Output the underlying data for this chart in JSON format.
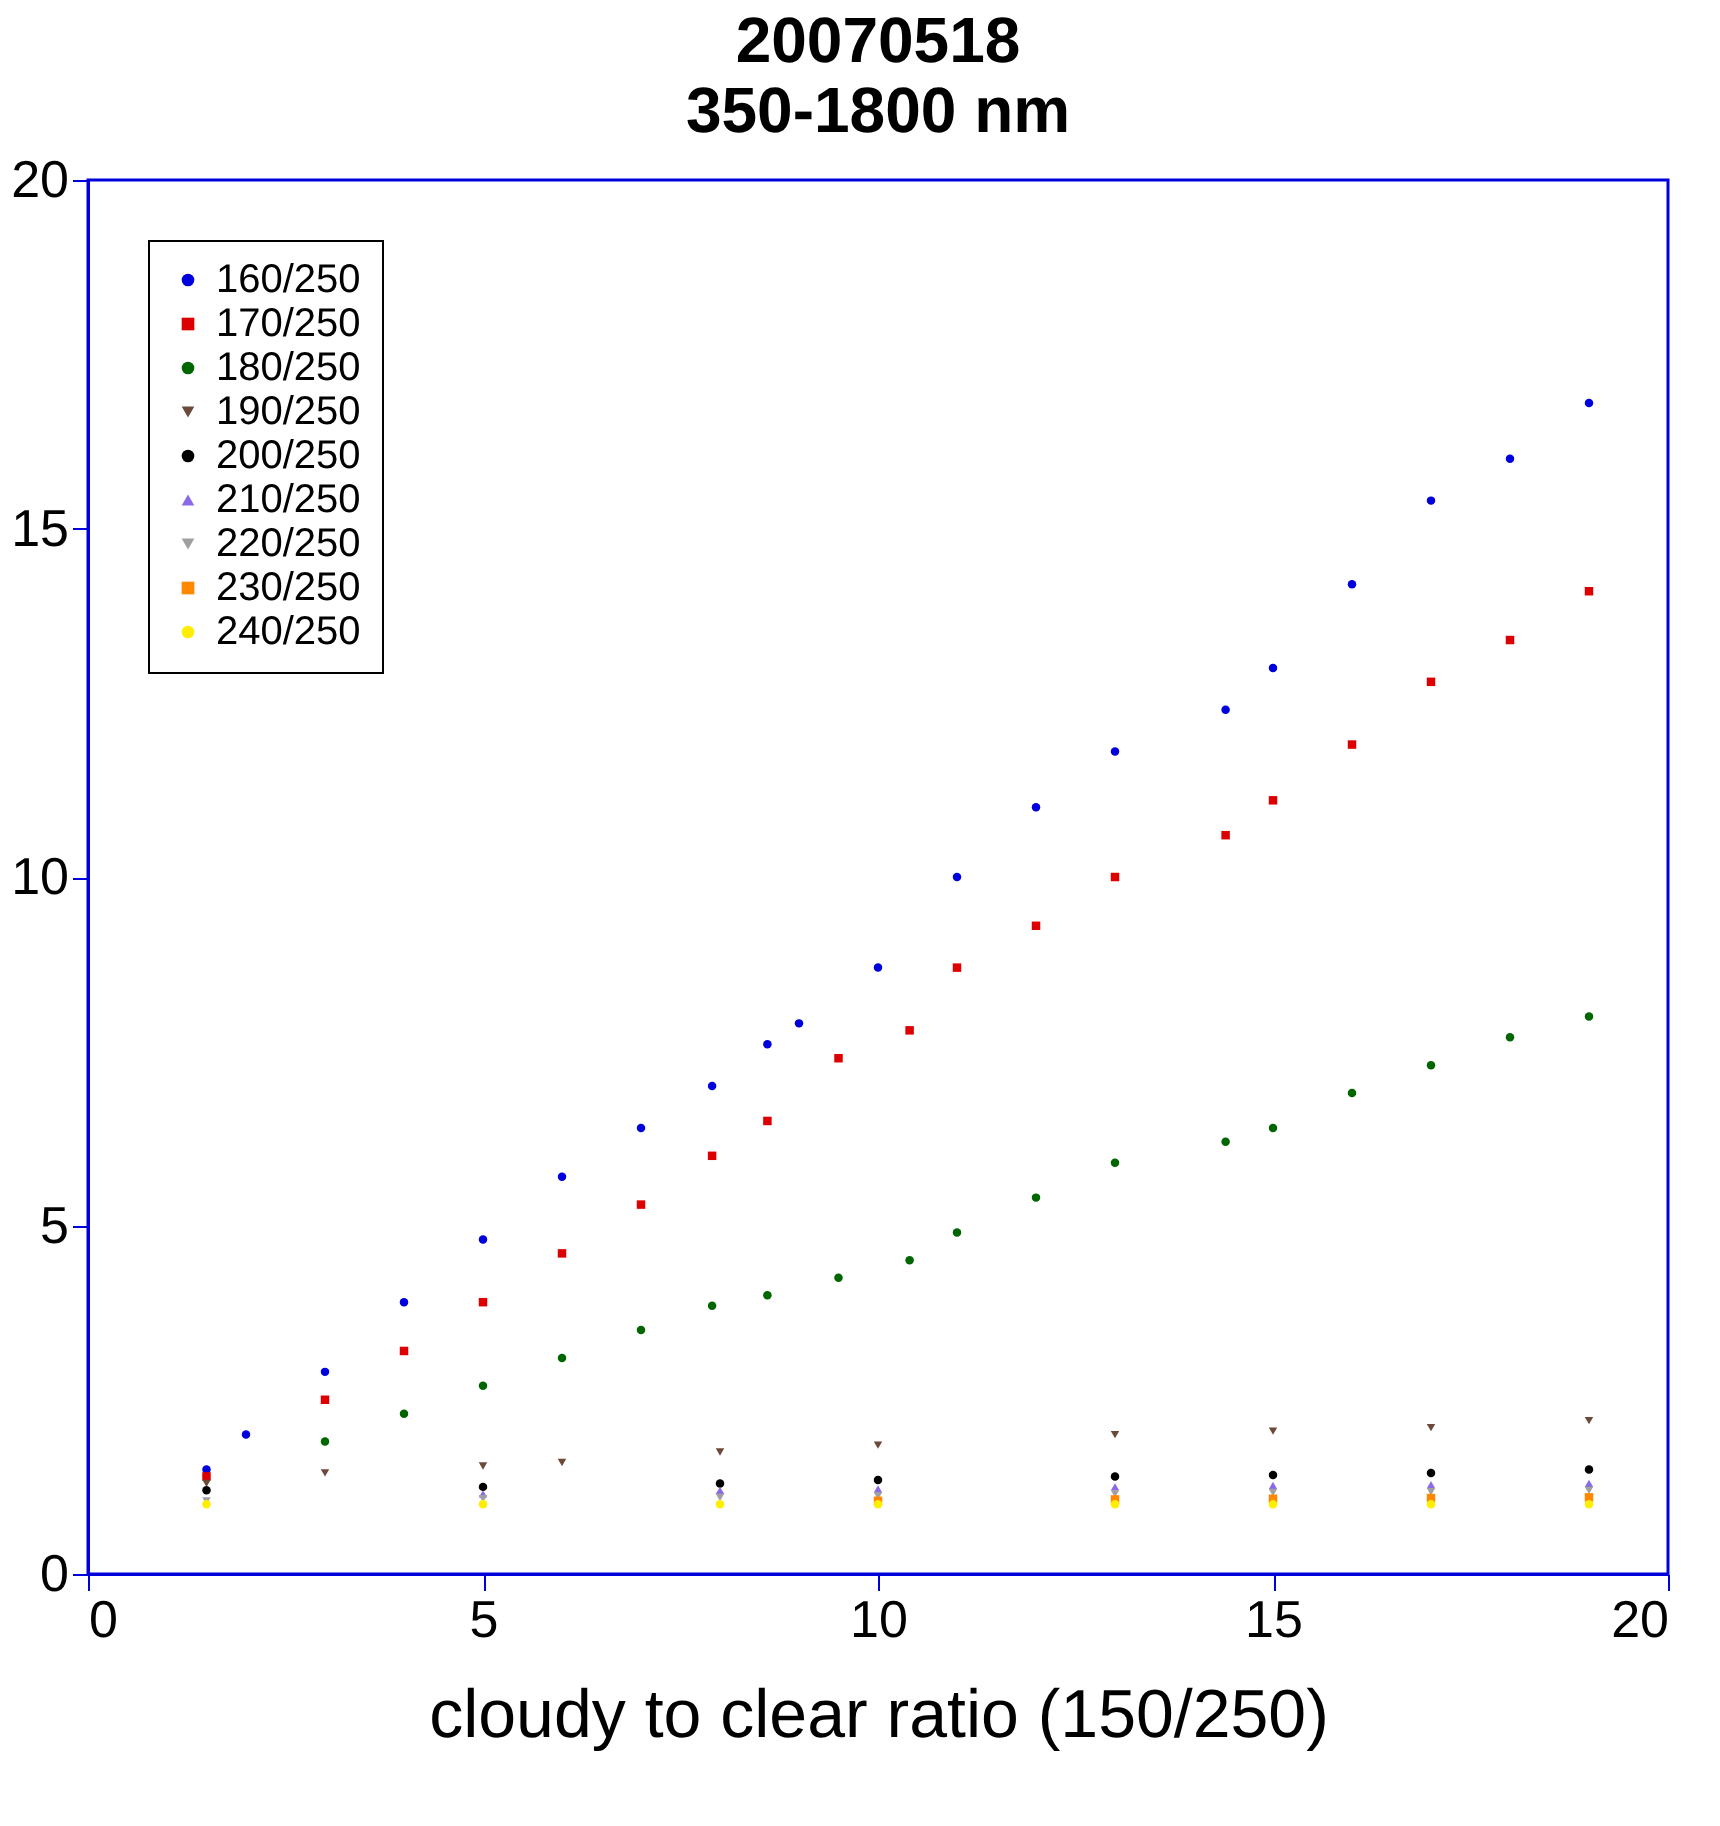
{
  "chart_data": {
    "type": "scatter",
    "title": "20070518",
    "subtitle": "350-1800 nm",
    "xlabel": "cloudy to clear ratio (150/250)",
    "xlim": [
      0,
      20
    ],
    "xticks": [
      0,
      5,
      10,
      15,
      20
    ],
    "ylim": [
      0,
      20
    ],
    "yticks": [
      0,
      5,
      10,
      15,
      20
    ],
    "grid": false,
    "legend": "top left",
    "series": [
      {
        "name": "160/250",
        "color": "#0000dd",
        "marker": "circle",
        "x": [
          1.5,
          2,
          3,
          4,
          5,
          6,
          7,
          7.9,
          8.6,
          9,
          10,
          11,
          12,
          13,
          14.4,
          15,
          16,
          17,
          18,
          19
        ],
        "values": [
          1.5,
          2,
          2.9,
          3.9,
          4.8,
          5.7,
          6.4,
          7.0,
          7.6,
          7.9,
          8.7,
          10.0,
          11.0,
          11.8,
          12.4,
          13.0,
          14.2,
          15.4,
          16.0,
          16.8
        ]
      },
      {
        "name": "170/250",
        "color": "#dd0000",
        "marker": "square",
        "x": [
          1.5,
          3,
          4,
          5,
          6,
          7,
          7.9,
          8.6,
          9.5,
          10.4,
          11,
          12,
          13,
          14.4,
          15,
          16,
          17,
          18,
          19
        ],
        "values": [
          1.4,
          2.5,
          3.2,
          3.9,
          4.6,
          5.3,
          6.0,
          6.5,
          7.4,
          7.8,
          8.7,
          9.3,
          10.0,
          10.6,
          11.1,
          11.9,
          12.8,
          13.4,
          14.1
        ]
      },
      {
        "name": "180/250",
        "color": "#006600",
        "marker": "circle",
        "x": [
          3,
          4,
          5,
          6,
          7,
          7.9,
          8.6,
          9.5,
          10.4,
          11,
          12,
          13,
          14.4,
          15,
          16,
          17,
          18,
          19
        ],
        "values": [
          1.9,
          2.3,
          2.7,
          3.1,
          3.5,
          3.85,
          4.0,
          4.25,
          4.5,
          4.9,
          5.4,
          5.9,
          6.2,
          6.4,
          6.9,
          7.3,
          7.7,
          8.0
        ]
      },
      {
        "name": "190/250",
        "color": "#6b4a3a",
        "marker": "triangle-down",
        "x": [
          1.5,
          3,
          5,
          6,
          8,
          10,
          13,
          15,
          17,
          19
        ],
        "values": [
          1.3,
          1.45,
          1.55,
          1.6,
          1.75,
          1.85,
          2.0,
          2.05,
          2.1,
          2.2
        ]
      },
      {
        "name": "200/250",
        "color": "#000000",
        "marker": "circle",
        "x": [
          1.5,
          5,
          8,
          10,
          13,
          15,
          17,
          19
        ],
        "values": [
          1.2,
          1.25,
          1.3,
          1.35,
          1.4,
          1.42,
          1.45,
          1.5
        ]
      },
      {
        "name": "210/250",
        "color": "#8a6ae6",
        "marker": "triangle-up",
        "x": [
          5,
          8,
          10,
          13,
          15,
          17,
          19
        ],
        "values": [
          1.15,
          1.2,
          1.22,
          1.25,
          1.27,
          1.28,
          1.3
        ]
      },
      {
        "name": "220/250",
        "color": "#a0a0a0",
        "marker": "triangle-down",
        "x": [
          1.5,
          5,
          8,
          10,
          13,
          15,
          17,
          19
        ],
        "values": [
          1.05,
          1.08,
          1.1,
          1.12,
          1.15,
          1.17,
          1.18,
          1.2
        ]
      },
      {
        "name": "230/250",
        "color": "#ff8800",
        "marker": "square",
        "x": [
          10,
          13,
          15,
          17,
          19
        ],
        "values": [
          1.05,
          1.07,
          1.08,
          1.09,
          1.1
        ]
      },
      {
        "name": "240/250",
        "color": "#ffee00",
        "marker": "circle",
        "x": [
          1.5,
          5,
          8,
          10,
          13,
          15,
          17,
          19
        ],
        "values": [
          1.0,
          1.0,
          1.0,
          1.0,
          1.0,
          1.0,
          1.0,
          1.0
        ]
      }
    ]
  }
}
